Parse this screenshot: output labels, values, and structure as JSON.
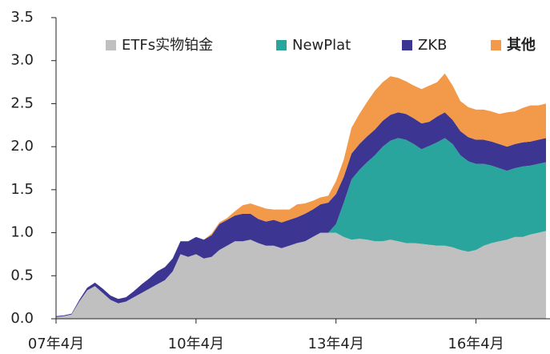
{
  "chart_data": {
    "type": "stacked_area",
    "categories": [
      "07年4月",
      null,
      null,
      null,
      null,
      null,
      null,
      null,
      null,
      null,
      null,
      null,
      null,
      null,
      null,
      null,
      null,
      null,
      "10年4月",
      null,
      null,
      null,
      null,
      null,
      null,
      null,
      null,
      null,
      null,
      null,
      null,
      null,
      null,
      null,
      null,
      null,
      "13年4月",
      null,
      null,
      null,
      null,
      null,
      null,
      null,
      null,
      null,
      null,
      null,
      null,
      null,
      null,
      null,
      null,
      null,
      "16年4月",
      null,
      null,
      null,
      null,
      null,
      null,
      null,
      null,
      null
    ],
    "series": [
      {
        "name": "ETFs实物铂金",
        "color": "#c0c0c0",
        "values": [
          0.02,
          0.03,
          0.05,
          0.2,
          0.33,
          0.38,
          0.3,
          0.22,
          0.18,
          0.2,
          0.25,
          0.3,
          0.35,
          0.4,
          0.45,
          0.55,
          0.75,
          0.72,
          0.75,
          0.7,
          0.72,
          0.8,
          0.85,
          0.9,
          0.9,
          0.92,
          0.88,
          0.85,
          0.85,
          0.82,
          0.85,
          0.88,
          0.9,
          0.95,
          1.0,
          1.0,
          1.0,
          0.95,
          0.92,
          0.93,
          0.92,
          0.9,
          0.9,
          0.92,
          0.9,
          0.88,
          0.88,
          0.87,
          0.86,
          0.85,
          0.85,
          0.83,
          0.8,
          0.78,
          0.8,
          0.85,
          0.88,
          0.9,
          0.92,
          0.95,
          0.95,
          0.98,
          1.0,
          1.02
        ]
      },
      {
        "name": "NewPlat",
        "color": "#2aa59e",
        "values": [
          0,
          0,
          0,
          0,
          0,
          0,
          0,
          0,
          0,
          0,
          0,
          0,
          0,
          0,
          0,
          0,
          0,
          0,
          0,
          0,
          0,
          0,
          0,
          0,
          0,
          0,
          0,
          0,
          0,
          0,
          0,
          0,
          0,
          0,
          0,
          0,
          0.1,
          0.4,
          0.7,
          0.8,
          0.9,
          1.0,
          1.1,
          1.15,
          1.2,
          1.2,
          1.15,
          1.1,
          1.15,
          1.2,
          1.25,
          1.2,
          1.1,
          1.05,
          1.0,
          0.95,
          0.9,
          0.85,
          0.8,
          0.8,
          0.82,
          0.8,
          0.8,
          0.8
        ]
      },
      {
        "name": "ZKB",
        "color": "#3d3592",
        "values": [
          0.01,
          0.01,
          0.01,
          0.02,
          0.03,
          0.04,
          0.05,
          0.05,
          0.05,
          0.05,
          0.07,
          0.1,
          0.12,
          0.15,
          0.15,
          0.15,
          0.15,
          0.18,
          0.2,
          0.22,
          0.25,
          0.3,
          0.3,
          0.3,
          0.32,
          0.3,
          0.28,
          0.28,
          0.3,
          0.3,
          0.3,
          0.3,
          0.32,
          0.32,
          0.33,
          0.35,
          0.35,
          0.3,
          0.3,
          0.3,
          0.3,
          0.3,
          0.3,
          0.3,
          0.3,
          0.3,
          0.3,
          0.3,
          0.28,
          0.3,
          0.3,
          0.28,
          0.28,
          0.28,
          0.28,
          0.28,
          0.28,
          0.28,
          0.28,
          0.28,
          0.28,
          0.28,
          0.28,
          0.28
        ]
      },
      {
        "name": "其他",
        "color": "#f39a4a",
        "values": [
          0,
          0,
          0,
          0,
          0,
          0,
          0,
          0,
          0,
          0,
          0,
          0,
          0,
          0,
          0,
          0,
          0,
          0,
          0,
          0,
          0.02,
          0.02,
          0.02,
          0.05,
          0.1,
          0.12,
          0.15,
          0.15,
          0.12,
          0.15,
          0.12,
          0.15,
          0.12,
          0.1,
          0.08,
          0.08,
          0.15,
          0.2,
          0.3,
          0.35,
          0.4,
          0.45,
          0.45,
          0.45,
          0.4,
          0.38,
          0.38,
          0.4,
          0.42,
          0.4,
          0.45,
          0.4,
          0.35,
          0.35,
          0.35,
          0.35,
          0.35,
          0.35,
          0.4,
          0.38,
          0.4,
          0.42,
          0.4,
          0.4
        ]
      }
    ],
    "ylim": [
      0,
      3.5
    ],
    "yticks": [
      {
        "value": 0,
        "label": "0.0"
      },
      0.5,
      {
        "value": 1,
        "label": "1.0"
      },
      1.5,
      {
        "value": 2,
        "label": "2.0"
      },
      2.5,
      {
        "value": 3,
        "label": "3.0"
      },
      3.5
    ],
    "legend": "top"
  }
}
